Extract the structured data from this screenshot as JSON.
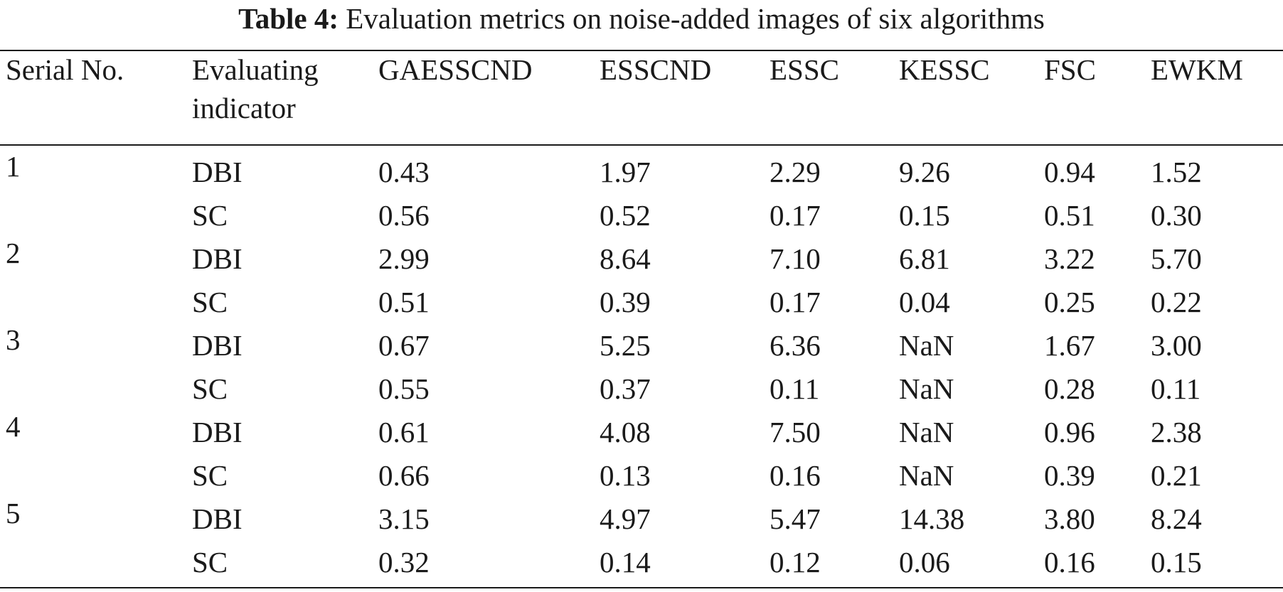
{
  "caption": {
    "label": "Table 4:",
    "text": "Evaluation metrics on noise-added images of six algorithms"
  },
  "table": {
    "headers": [
      "Serial No.",
      "Evaluating indicator",
      "GAESSCND",
      "ESSCND",
      "ESSC",
      "KESSC",
      "FSC",
      "EWKM"
    ],
    "header_lines": {
      "evaluating_1": "Evaluating",
      "evaluating_2": "indicator"
    },
    "rows": [
      {
        "serial": "1",
        "indicator": "DBI",
        "values": [
          "0.43",
          "1.97",
          "2.29",
          "9.26",
          "0.94",
          "1.52"
        ]
      },
      {
        "serial": "",
        "indicator": "SC",
        "values": [
          "0.56",
          "0.52",
          "0.17",
          "0.15",
          "0.51",
          "0.30"
        ]
      },
      {
        "serial": "2",
        "indicator": "DBI",
        "values": [
          "2.99",
          "8.64",
          "7.10",
          "6.81",
          "3.22",
          "5.70"
        ]
      },
      {
        "serial": "",
        "indicator": "SC",
        "values": [
          "0.51",
          "0.39",
          "0.17",
          "0.04",
          "0.25",
          "0.22"
        ]
      },
      {
        "serial": "3",
        "indicator": "DBI",
        "values": [
          "0.67",
          "5.25",
          "6.36",
          "NaN",
          "1.67",
          "3.00"
        ]
      },
      {
        "serial": "",
        "indicator": "SC",
        "values": [
          "0.55",
          "0.37",
          "0.11",
          "NaN",
          "0.28",
          "0.11"
        ]
      },
      {
        "serial": "4",
        "indicator": "DBI",
        "values": [
          "0.61",
          "4.08",
          "7.50",
          "NaN",
          "0.96",
          "2.38"
        ]
      },
      {
        "serial": "",
        "indicator": "SC",
        "values": [
          "0.66",
          "0.13",
          "0.16",
          "NaN",
          "0.39",
          "0.21"
        ]
      },
      {
        "serial": "5",
        "indicator": "DBI",
        "values": [
          "3.15",
          "4.97",
          "5.47",
          "14.38",
          "3.80",
          "8.24"
        ]
      },
      {
        "serial": "",
        "indicator": "SC",
        "values": [
          "0.32",
          "0.14",
          "0.12",
          "0.06",
          "0.16",
          "0.15"
        ]
      }
    ]
  }
}
